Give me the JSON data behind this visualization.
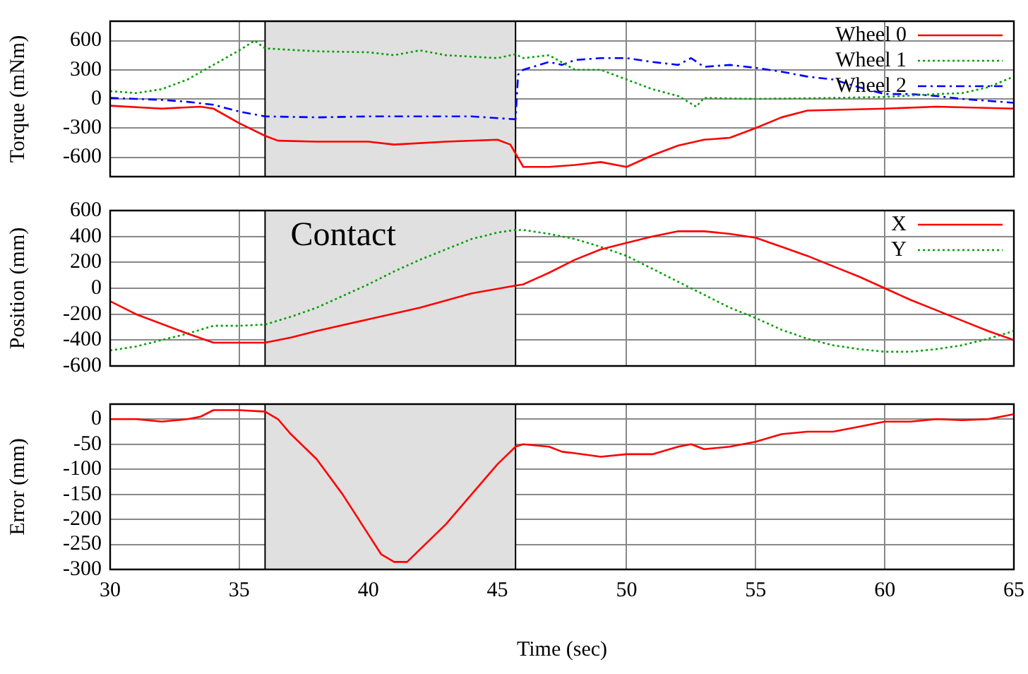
{
  "chart_data": [
    {
      "type": "line",
      "ylabel": "Torque (mNm)",
      "xlim": [
        30,
        65
      ],
      "xticks": [
        30,
        35,
        40,
        45,
        50,
        55,
        60,
        65
      ],
      "ylim": [
        -800,
        800
      ],
      "yticks": [
        -600,
        -300,
        0,
        300,
        600
      ],
      "grid": true,
      "legend": "top right",
      "tick_labels": "y",
      "bands": [
        {
          "axis": "x",
          "from": 36,
          "to": 45.7,
          "color": "#e0e0e0"
        }
      ],
      "series": [
        {
          "name": "Wheel 0",
          "color": "#ff0000",
          "line_style": "solid",
          "x": [
            30,
            32,
            33.5,
            34,
            35,
            36,
            36.5,
            38,
            40,
            41,
            43,
            45,
            45.5,
            46,
            47,
            48,
            49,
            50,
            51,
            52,
            53,
            54,
            55,
            56,
            57,
            60,
            62,
            65
          ],
          "values": [
            -70,
            -100,
            -80,
            -100,
            -250,
            -380,
            -430,
            -440,
            -440,
            -470,
            -440,
            -420,
            -470,
            -700,
            -700,
            -680,
            -650,
            -700,
            -580,
            -480,
            -420,
            -400,
            -300,
            -190,
            -120,
            -100,
            -80,
            -100
          ]
        },
        {
          "name": "Wheel 1",
          "color": "#00a000",
          "line_style": "dotted",
          "x": [
            30,
            31,
            32,
            33,
            34,
            35,
            35.6,
            36,
            38,
            40,
            41,
            42,
            43,
            45,
            45.7,
            46,
            47,
            48,
            49,
            50,
            51,
            52,
            52.7,
            53,
            55,
            58,
            60,
            62,
            63,
            64,
            65
          ],
          "values": [
            80,
            60,
            100,
            200,
            350,
            500,
            600,
            520,
            490,
            480,
            450,
            500,
            450,
            420,
            460,
            420,
            450,
            300,
            300,
            200,
            100,
            30,
            -80,
            10,
            0,
            10,
            20,
            50,
            60,
            120,
            230
          ]
        },
        {
          "name": "Wheel 2",
          "color": "#0000ff",
          "line_style": "dashed",
          "x": [
            30,
            31,
            32,
            33,
            34,
            35,
            36,
            38,
            40,
            42,
            44,
            45.7,
            45.8,
            46,
            47,
            47.5,
            48,
            49,
            50,
            51,
            52,
            52.5,
            53,
            54,
            55,
            56,
            57,
            58,
            59,
            60,
            61,
            62,
            63,
            64,
            65
          ],
          "values": [
            10,
            0,
            -10,
            -30,
            -60,
            -130,
            -180,
            -190,
            -180,
            -180,
            -180,
            -210,
            250,
            300,
            380,
            350,
            400,
            420,
            420,
            380,
            350,
            420,
            330,
            350,
            320,
            280,
            230,
            200,
            120,
            50,
            50,
            30,
            0,
            -20,
            -40
          ]
        }
      ],
      "ref_lines": [
        {
          "axis": "x",
          "value": 36,
          "color": "#000000"
        },
        {
          "axis": "x",
          "value": 45.7,
          "color": "#000000"
        }
      ]
    },
    {
      "type": "line",
      "ylabel": "Position (mm)",
      "xlim": [
        30,
        65
      ],
      "xticks": [
        30,
        35,
        40,
        45,
        50,
        55,
        60,
        65
      ],
      "ylim": [
        -600,
        600
      ],
      "yticks": [
        -600,
        -400,
        -200,
        0,
        200,
        400,
        600
      ],
      "grid": true,
      "legend": "top right",
      "tick_labels": "y",
      "bands": [
        {
          "axis": "x",
          "from": 36,
          "to": 45.7,
          "color": "#e0e0e0",
          "label": "Contact"
        }
      ],
      "ref_lines": [
        {
          "axis": "x",
          "value": 36,
          "color": "#000000"
        },
        {
          "axis": "x",
          "value": 45.7,
          "color": "#000000"
        }
      ],
      "series": [
        {
          "name": "X",
          "color": "#ff0000",
          "line_style": "solid",
          "x": [
            30,
            31,
            33,
            34,
            36,
            37,
            38,
            40,
            42,
            44,
            45.7,
            46,
            47,
            48,
            49,
            50,
            51,
            52,
            53,
            54,
            55,
            56,
            57,
            58,
            59,
            60,
            61,
            62,
            63,
            64,
            65
          ],
          "values": [
            -100,
            -200,
            -350,
            -420,
            -420,
            -380,
            -330,
            -240,
            -150,
            -40,
            20,
            30,
            120,
            220,
            300,
            350,
            400,
            440,
            440,
            420,
            390,
            320,
            250,
            170,
            90,
            0,
            -90,
            -170,
            -250,
            -330,
            -400
          ]
        },
        {
          "name": "Y",
          "color": "#00a000",
          "line_style": "dotted",
          "x": [
            30,
            31,
            32,
            33,
            34,
            35,
            36,
            37,
            38,
            39,
            40,
            41,
            42,
            43,
            44,
            45,
            45.7,
            46,
            47,
            48,
            49,
            50,
            51,
            52,
            53,
            54,
            55,
            56,
            57,
            58,
            59,
            60,
            61,
            62,
            63,
            64,
            65
          ],
          "values": [
            -480,
            -450,
            -400,
            -350,
            -290,
            -290,
            -280,
            -220,
            -150,
            -60,
            30,
            130,
            220,
            300,
            380,
            430,
            450,
            450,
            420,
            380,
            320,
            250,
            150,
            50,
            -50,
            -150,
            -230,
            -320,
            -390,
            -440,
            -470,
            -490,
            -490,
            -470,
            -440,
            -390,
            -330
          ]
        }
      ]
    },
    {
      "type": "line",
      "xlabel": "Time (sec)",
      "ylabel": "Error (mm)",
      "xlim": [
        30,
        65
      ],
      "xticks": [
        30,
        35,
        40,
        45,
        50,
        55,
        60,
        65
      ],
      "ylim": [
        -300,
        30
      ],
      "yticks": [
        -300,
        -250,
        -200,
        -150,
        -100,
        -50,
        0
      ],
      "grid": true,
      "ref_lines": [
        {
          "axis": "x",
          "value": 36,
          "color": "#000000"
        },
        {
          "axis": "x",
          "value": 45.7,
          "color": "#000000"
        }
      ],
      "bands": [
        {
          "axis": "x",
          "from": 36,
          "to": 45.7,
          "color": "#e0e0e0"
        }
      ],
      "series": [
        {
          "color": "#ff0000",
          "line_style": "solid",
          "x": [
            30,
            31,
            32,
            33,
            33.5,
            34,
            35,
            36,
            36.5,
            37,
            38,
            39,
            40,
            40.5,
            41,
            41.5,
            42,
            43,
            44,
            45,
            45.7,
            46,
            47,
            47.5,
            48,
            49,
            50,
            51,
            52,
            52.5,
            53,
            54,
            55,
            56,
            57,
            58,
            59,
            60,
            61,
            62,
            63,
            64,
            65
          ],
          "values": [
            0,
            0,
            -5,
            0,
            5,
            18,
            18,
            15,
            0,
            -30,
            -80,
            -150,
            -230,
            -270,
            -285,
            -285,
            -260,
            -210,
            -150,
            -90,
            -55,
            -50,
            -55,
            -65,
            -68,
            -75,
            -70,
            -70,
            -55,
            -50,
            -60,
            -55,
            -45,
            -30,
            -25,
            -25,
            -15,
            -5,
            -5,
            0,
            -2,
            0,
            10
          ]
        }
      ]
    }
  ]
}
